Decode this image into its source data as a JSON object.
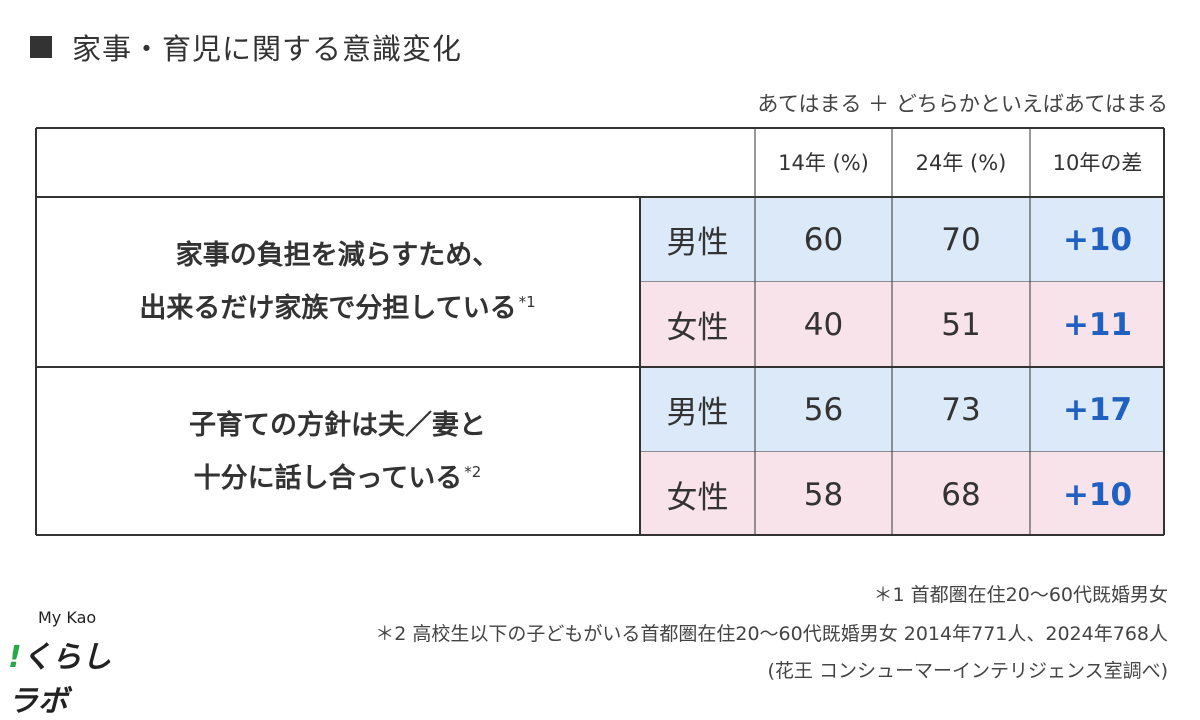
{
  "title": "家事・育児に関する意識変化",
  "scale_note": "あてはまる ＋ どちらかといえばあてはまる",
  "chart_data": {
    "type": "table",
    "columns": [
      "14年 (%)",
      "24年 (%)",
      "10年の差"
    ],
    "groups": [
      {
        "statement_lines": [
          "家事の負担を減らすため、",
          "出来るだけ家族で分担している"
        ],
        "footnote_mark": "*1",
        "rows": [
          {
            "gender": "男性",
            "y14": 60,
            "y24": 70,
            "diff": "+10"
          },
          {
            "gender": "女性",
            "y14": 40,
            "y24": 51,
            "diff": "+11"
          }
        ]
      },
      {
        "statement_lines": [
          "子育ての方針は夫／妻と",
          "十分に話し合っている"
        ],
        "footnote_mark": "*2",
        "rows": [
          {
            "gender": "男性",
            "y14": 56,
            "y24": 73,
            "diff": "+17"
          },
          {
            "gender": "女性",
            "y14": 58,
            "y24": 68,
            "diff": "+10"
          }
        ]
      }
    ]
  },
  "colors": {
    "male_bg": "#dce9f8",
    "female_bg": "#f9e3ea",
    "diff": "#2060c0",
    "border": "#333333"
  },
  "footnotes": [
    "＊1 首都圏在住20〜60代既婚男女",
    "＊2 高校生以下の子どもがいる首都圏在住20〜60代既婚男女 2014年771人、2024年768人",
    "(花王 コンシューマーインテリジェンス室調べ)"
  ],
  "logo": {
    "top": "My Kao",
    "bang": "!",
    "main": "くらしラボ"
  }
}
